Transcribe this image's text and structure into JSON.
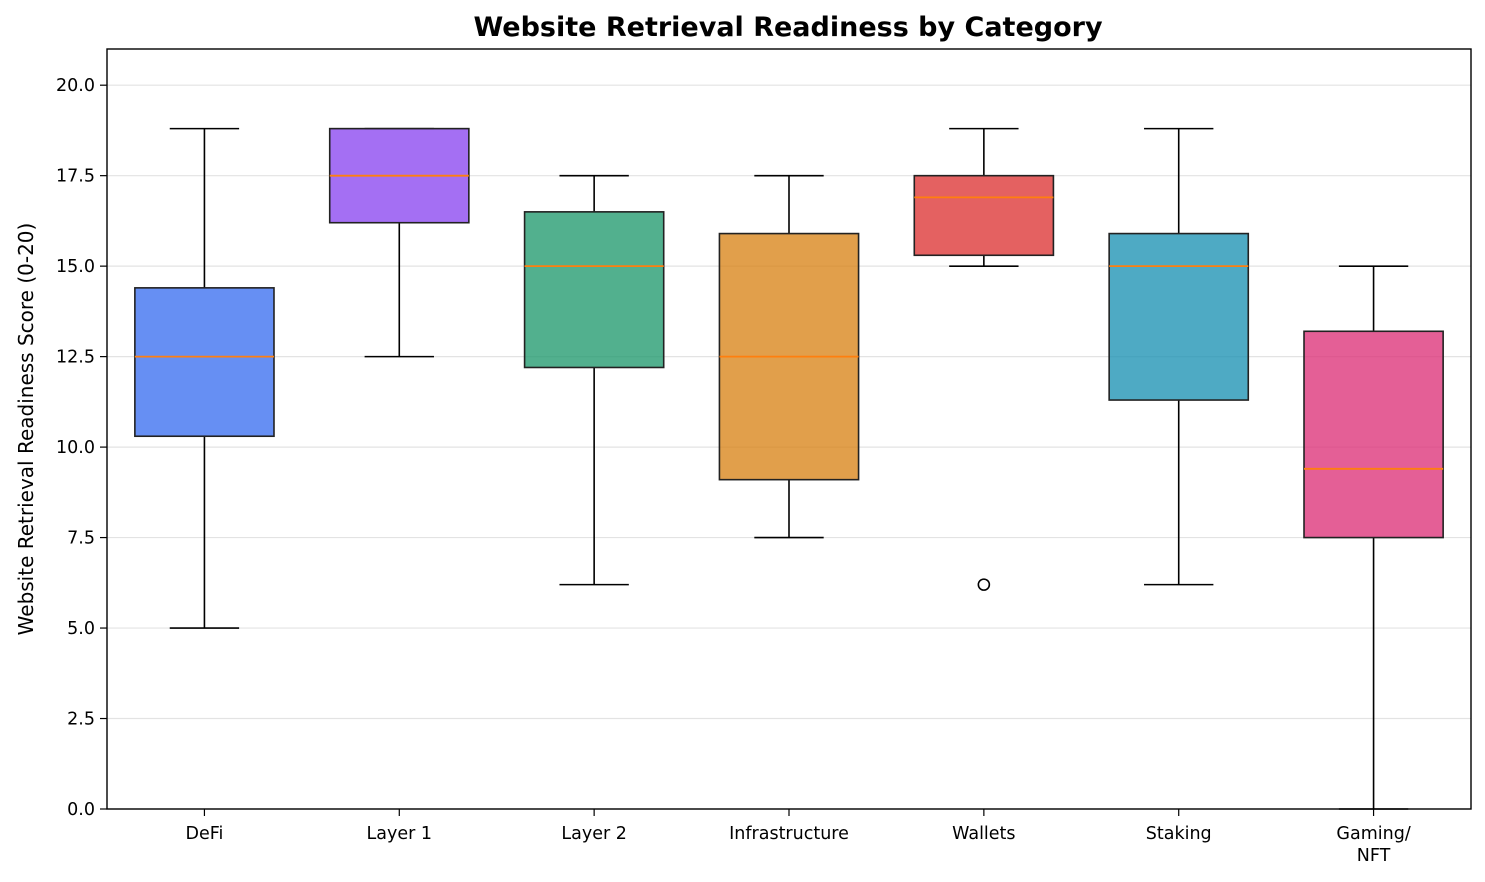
{
  "chart_data": {
    "type": "boxplot",
    "title": "Website Retrieval Readiness by Category",
    "xlabel": "",
    "ylabel": "Website Retrieval Readiness Score (0-20)",
    "ylim": [
      0,
      21
    ],
    "yticks": [
      0.0,
      2.5,
      5.0,
      7.5,
      10.0,
      12.5,
      15.0,
      17.5,
      20.0
    ],
    "ytick_labels": [
      "0.0",
      "2.5",
      "5.0",
      "7.5",
      "10.0",
      "12.5",
      "15.0",
      "17.5",
      "20.0"
    ],
    "grid": "horizontal",
    "median_color": "#ff7f0e",
    "categories": [
      {
        "label": [
          "DeFi"
        ],
        "whisker_low": 5.0,
        "q1": 10.3,
        "median": 12.5,
        "q3": 14.4,
        "whisker_high": 18.8,
        "outliers": [],
        "color": "#3b6ff0"
      },
      {
        "label": [
          "Layer 1"
        ],
        "whisker_low": 12.5,
        "q1": 16.2,
        "median": 17.5,
        "q3": 18.8,
        "whisker_high": 18.8,
        "outliers": [],
        "color": "#8b46f0"
      },
      {
        "label": [
          "Layer 2"
        ],
        "whisker_low": 6.2,
        "q1": 12.2,
        "median": 15.0,
        "q3": 16.5,
        "whisker_high": 17.5,
        "outliers": [],
        "color": "#219a6e"
      },
      {
        "label": [
          "Infrastructure"
        ],
        "whisker_low": 7.5,
        "q1": 9.1,
        "median": 12.5,
        "q3": 15.9,
        "whisker_high": 17.5,
        "outliers": [],
        "color": "#d98418"
      },
      {
        "label": [
          "Wallets"
        ],
        "whisker_low": 15.0,
        "q1": 15.3,
        "median": 16.9,
        "q3": 17.5,
        "whisker_high": 18.8,
        "outliers": [
          6.2
        ],
        "color": "#dd3434"
      },
      {
        "label": [
          "Staking"
        ],
        "whisker_low": 6.2,
        "q1": 11.3,
        "median": 15.0,
        "q3": 15.9,
        "whisker_high": 18.8,
        "outliers": [],
        "color": "#1c92b4"
      },
      {
        "label": [
          "Gaming/",
          "NFT"
        ],
        "whisker_low": 0.0,
        "q1": 7.5,
        "median": 9.4,
        "q3": 13.2,
        "whisker_high": 15.0,
        "outliers": [],
        "color": "#dd3279"
      }
    ]
  }
}
